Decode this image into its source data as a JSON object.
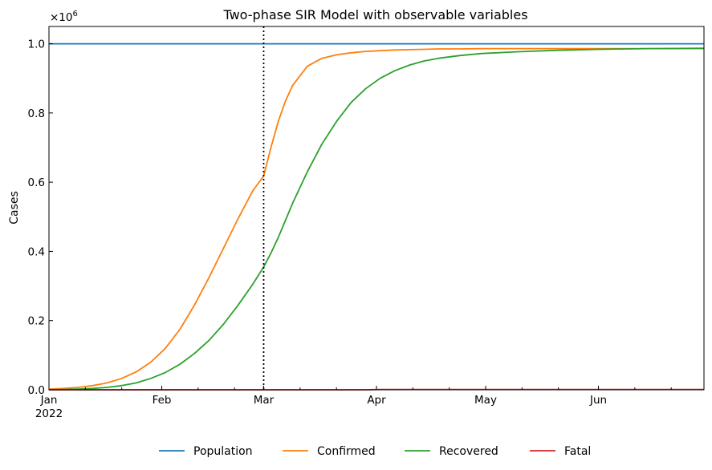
{
  "chart_data": {
    "type": "line",
    "title": "Two-phase SIR Model with observable variables",
    "ylabel": "Cases",
    "y_multiplier": "×10",
    "y_multiplier_exp": "6",
    "ylim": [
      0,
      1.05
    ],
    "xlim": [
      "2022-01-01",
      "2022-06-30"
    ],
    "y_ticks": [
      {
        "value": 0.0,
        "label": "0.0"
      },
      {
        "value": 0.2,
        "label": "0.2"
      },
      {
        "value": 0.4,
        "label": "0.4"
      },
      {
        "value": 0.6,
        "label": "0.6"
      },
      {
        "value": 0.8,
        "label": "0.8"
      },
      {
        "value": 1.0,
        "label": "1.0"
      }
    ],
    "x_ticks": [
      {
        "date": "2022-01-01",
        "label": "Jan",
        "sublabel": "2022"
      },
      {
        "date": "2022-02-01",
        "label": "Feb"
      },
      {
        "date": "2022-03-01",
        "label": "Mar"
      },
      {
        "date": "2022-04-01",
        "label": "Apr"
      },
      {
        "date": "2022-05-01",
        "label": "May"
      },
      {
        "date": "2022-06-01",
        "label": "Jun"
      }
    ],
    "x_minor_tick_dates": [
      "2022-01-11",
      "2022-01-21",
      "2022-02-11",
      "2022-02-21",
      "2022-03-11",
      "2022-03-21",
      "2022-04-11",
      "2022-04-21",
      "2022-05-11",
      "2022-05-21",
      "2022-06-11",
      "2022-06-21"
    ],
    "phase_change_date": "2022-03-01",
    "legend_placement": "bottom-center",
    "grid": false,
    "x": [
      "2022-01-01",
      "2022-01-05",
      "2022-01-09",
      "2022-01-13",
      "2022-01-17",
      "2022-01-21",
      "2022-01-25",
      "2022-01-29",
      "2022-02-02",
      "2022-02-06",
      "2022-02-10",
      "2022-02-14",
      "2022-02-18",
      "2022-02-22",
      "2022-02-26",
      "2022-03-01",
      "2022-03-03",
      "2022-03-05",
      "2022-03-07",
      "2022-03-09",
      "2022-03-13",
      "2022-03-17",
      "2022-03-21",
      "2022-03-25",
      "2022-03-29",
      "2022-04-02",
      "2022-04-06",
      "2022-04-10",
      "2022-04-14",
      "2022-04-18",
      "2022-04-24",
      "2022-04-30",
      "2022-05-10",
      "2022-05-20",
      "2022-06-01",
      "2022-06-15",
      "2022-06-30"
    ],
    "series": [
      {
        "name": "Population",
        "color": "#1f77b4",
        "values": [
          1.0,
          1.0,
          1.0,
          1.0,
          1.0,
          1.0,
          1.0,
          1.0,
          1.0,
          1.0,
          1.0,
          1.0,
          1.0,
          1.0,
          1.0,
          1.0,
          1.0,
          1.0,
          1.0,
          1.0,
          1.0,
          1.0,
          1.0,
          1.0,
          1.0,
          1.0,
          1.0,
          1.0,
          1.0,
          1.0,
          1.0,
          1.0,
          1.0,
          1.0,
          1.0,
          1.0,
          1.0
        ]
      },
      {
        "name": "Confirmed",
        "color": "#ff7f0e",
        "values": [
          0.002,
          0.004,
          0.007,
          0.012,
          0.02,
          0.033,
          0.052,
          0.08,
          0.12,
          0.175,
          0.245,
          0.325,
          0.41,
          0.495,
          0.575,
          0.618,
          0.7,
          0.775,
          0.835,
          0.88,
          0.935,
          0.958,
          0.968,
          0.974,
          0.978,
          0.98,
          0.982,
          0.983,
          0.984,
          0.985,
          0.985,
          0.986,
          0.986,
          0.986,
          0.986,
          0.986,
          0.986
        ]
      },
      {
        "name": "Recovered",
        "color": "#2ca02c",
        "values": [
          0.0,
          0.001,
          0.002,
          0.004,
          0.007,
          0.012,
          0.02,
          0.033,
          0.05,
          0.074,
          0.105,
          0.143,
          0.19,
          0.245,
          0.305,
          0.355,
          0.395,
          0.44,
          0.49,
          0.54,
          0.63,
          0.71,
          0.775,
          0.83,
          0.87,
          0.9,
          0.922,
          0.938,
          0.95,
          0.958,
          0.966,
          0.972,
          0.977,
          0.981,
          0.984,
          0.986,
          0.987
        ]
      },
      {
        "name": "Fatal",
        "color": "#d62728",
        "values": [
          0.0,
          0.0,
          0.0,
          0.0,
          0.0,
          0.0,
          0.0,
          0.0,
          0.0,
          0.0,
          0.0,
          0.0,
          0.0,
          0.0,
          0.0,
          0.0,
          0.0,
          0.0,
          0.0,
          0.0,
          0.0,
          0.0,
          0.0,
          0.0,
          0.0,
          0.001,
          0.001,
          0.001,
          0.001,
          0.001,
          0.001,
          0.001,
          0.001,
          0.001,
          0.001,
          0.001,
          0.001
        ]
      }
    ]
  }
}
